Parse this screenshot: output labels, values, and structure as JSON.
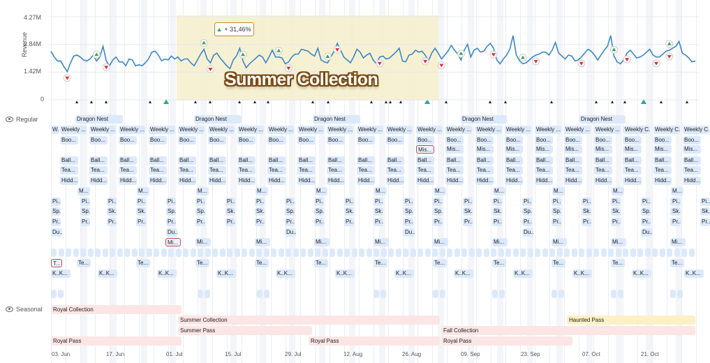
{
  "chart_data": {
    "type": "line",
    "ylabel": "Revenue",
    "ylim": [
      0,
      4.27
    ],
    "y_ticks": [
      "4.27M",
      "2.84M",
      "1.42M",
      "0"
    ],
    "x_ticks": [
      "03. Jun",
      "17. Jun",
      "01. Jul",
      "15. Jul",
      "29. Jul",
      "12. Aug",
      "26. Aug",
      "09. Sep",
      "23. Sep",
      "07. Oct",
      "21. Oct"
    ],
    "x_range": [
      "2024-06-03",
      "2024-10-29"
    ],
    "values": [
      2.5,
      2.2,
      2.0,
      2.0,
      1.7,
      1.45,
      1.9,
      2.25,
      2.3,
      2.2,
      2.05,
      2.0,
      2.1,
      2.3,
      2.0,
      2.2,
      2.75,
      2.0,
      1.75,
      2.05,
      2.2,
      1.95,
      1.95,
      1.75,
      2.1,
      2.05,
      1.75,
      1.8,
      1.75,
      1.9,
      2.1,
      2.45,
      2.5,
      2.3,
      2.0,
      2.1,
      2.05,
      2.25,
      2.1,
      2.2,
      2.0,
      2.1,
      2.1,
      1.9,
      1.75,
      2.05,
      2.35,
      2.6,
      2.1,
      1.9,
      2.3,
      2.4,
      2.15,
      1.95,
      1.75,
      1.6,
      2.05,
      2.25,
      2.65,
      2.0,
      1.65,
      1.85,
      2.0,
      2.15,
      2.3,
      2.2,
      1.9,
      2.2,
      2.55,
      2.2,
      2.2,
      2.15,
      1.85,
      1.95,
      2.2,
      2.35,
      2.35,
      2.6,
      2.55,
      2.5,
      2.35,
      2.25,
      2.65,
      2.05,
      1.95,
      1.9,
      2.2,
      2.5,
      2.9,
      2.55,
      2.2,
      2.05,
      1.9,
      2.2,
      2.6,
      2.45,
      2.15,
      2.3,
      2.4,
      2.05,
      1.85,
      2.2,
      2.25,
      2.1,
      2.15,
      2.3,
      2.45,
      2.65,
      2.0,
      1.95,
      2.3,
      2.35,
      2.55,
      2.45,
      2.5,
      2.3,
      2.0,
      2.4,
      2.65,
      2.4,
      2.1,
      2.3,
      2.5,
      2.8,
      2.55,
      2.35,
      2.05,
      2.55,
      2.85,
      2.2,
      2.55,
      2.65,
      2.45,
      2.5,
      2.75,
      2.9,
      2.65,
      2.05,
      1.85,
      2.1,
      2.3,
      2.6,
      3.3,
      2.3,
      2.0,
      1.85,
      1.9,
      2.05,
      2.2,
      2.3,
      2.35,
      2.45,
      2.45,
      2.3,
      2.55,
      2.95,
      2.4,
      2.25,
      2.1,
      2.3,
      2.25,
      2.0,
      2.05,
      2.2,
      2.4,
      2.6,
      2.5,
      2.3,
      2.05,
      2.3,
      2.55,
      2.75,
      3.3,
      2.25,
      1.95,
      1.85,
      2.05,
      2.4,
      2.55,
      2.35,
      2.15,
      2.2,
      2.3,
      2.45,
      2.6,
      2.3,
      2.2,
      2.2,
      2.35,
      2.5,
      2.55,
      2.65,
      2.75,
      3.0,
      2.4,
      2.3,
      2.15,
      1.95,
      2.0
    ],
    "up_markers": [
      6,
      21,
      44,
      59,
      73,
      94,
      108,
      115
    ],
    "down_markers": [
      1,
      6,
      18,
      21,
      27,
      35,
      41,
      52,
      60,
      67,
      71,
      81,
      91,
      95,
      99,
      108,
      114
    ],
    "highlight": {
      "label": "Summer Collection",
      "change": "+ 31,46%"
    }
  },
  "colors": {
    "line": "#3a86c8",
    "up": "#39a957",
    "down": "#d9303e",
    "highlight": "#f6efce",
    "event": "#dce9fa",
    "seasonal_pink": "#fbe5e5",
    "seasonal_yellow": "#fbf1c4"
  },
  "rows": {
    "regular": "Regular",
    "seasonal": "Seasonal"
  },
  "labels": {
    "dragon": "Dragon Nest",
    "weekly": "Weekly ...",
    "weekly_c": "Weekly C...",
    "weekly_w": "W.",
    "boo": "Boo...",
    "mis3": "Mis...",
    "ball": "Ball...",
    "tea": "Tea...",
    "hidd": "Hidd...",
    "m": "M...",
    "pi": "Pi...",
    "sp": "Sp...",
    "sk": "Sk...",
    "s": "S...",
    "pr": "Pr...",
    "du": "Du...",
    "mi": "Mi...",
    "te": "Te...",
    "t": "T...",
    "kk": "K..K..."
  },
  "seasonal": [
    {
      "label": "Royal Collection"
    },
    {
      "label": "Summer Collection"
    },
    {
      "label": "Summer Pass"
    },
    {
      "label": "Royal Pass"
    },
    {
      "label": "Royal Pass"
    },
    {
      "label": "Fall Collection"
    },
    {
      "label": "Royal Pass"
    },
    {
      "label": "Haunted Pass"
    }
  ]
}
